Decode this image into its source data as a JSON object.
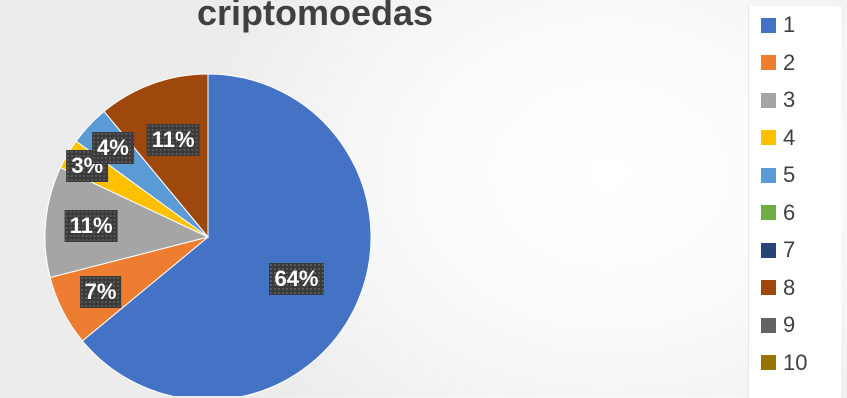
{
  "chart_data": {
    "type": "pie",
    "title": "criptomoedas",
    "series": [
      {
        "categories": [
          "1",
          "2",
          "3",
          "4",
          "5",
          "6",
          "7",
          "8",
          "9",
          "10"
        ],
        "values": [
          64,
          7,
          11,
          3,
          4,
          0,
          0,
          11,
          0,
          0
        ],
        "labels": [
          "64%",
          "7%",
          "11%",
          "3%",
          "4%",
          "",
          "",
          "11%",
          "",
          ""
        ]
      }
    ],
    "colors": [
      "#4472c4",
      "#ed7d31",
      "#a5a5a5",
      "#ffc000",
      "#5b9bd5",
      "#70ad47",
      "#264478",
      "#9e480e",
      "#636363",
      "#997300"
    ],
    "legend_position": "right"
  }
}
